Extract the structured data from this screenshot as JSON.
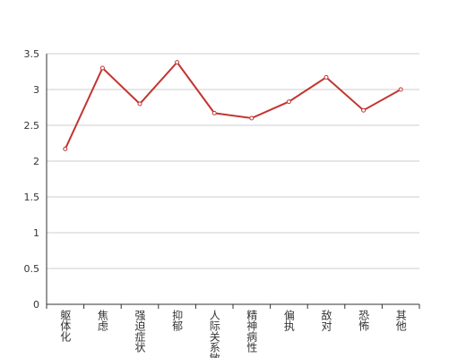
{
  "chart_data": {
    "type": "line",
    "categories": [
      "躯体化",
      "焦虑",
      "强迫症状",
      "抑郁",
      "人际关系敏感",
      "精神病性",
      "偏执",
      "敌对",
      "恐怖",
      "其他"
    ],
    "series": [
      {
        "color": "#c23531",
        "values": [
          2.17,
          3.3,
          2.8,
          3.38,
          2.67,
          2.6,
          2.83,
          3.17,
          2.71,
          3.0
        ]
      }
    ],
    "ylim": [
      0,
      3.5
    ],
    "yticks": [
      0,
      0.5,
      1,
      1.5,
      2,
      2.5,
      3,
      3.5
    ],
    "grid": true
  }
}
